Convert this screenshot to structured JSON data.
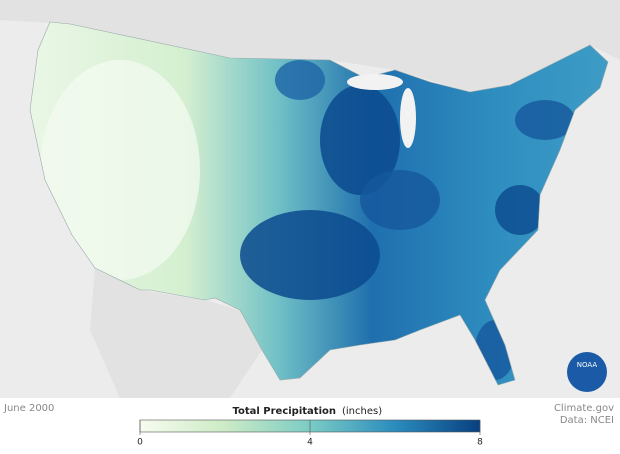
{
  "date": "June 2000",
  "legend": {
    "title": "Total Precipitation",
    "unit": "(inches)",
    "range": [
      0,
      8
    ],
    "ticks": [
      0,
      4,
      8
    ],
    "colors": [
      "#f7fcf0",
      "#ccebc5",
      "#7bccc4",
      "#2b8cbe",
      "#084081"
    ]
  },
  "credit": "Climate.gov",
  "source": "Data: NCEI",
  "logo": "NOAA"
}
